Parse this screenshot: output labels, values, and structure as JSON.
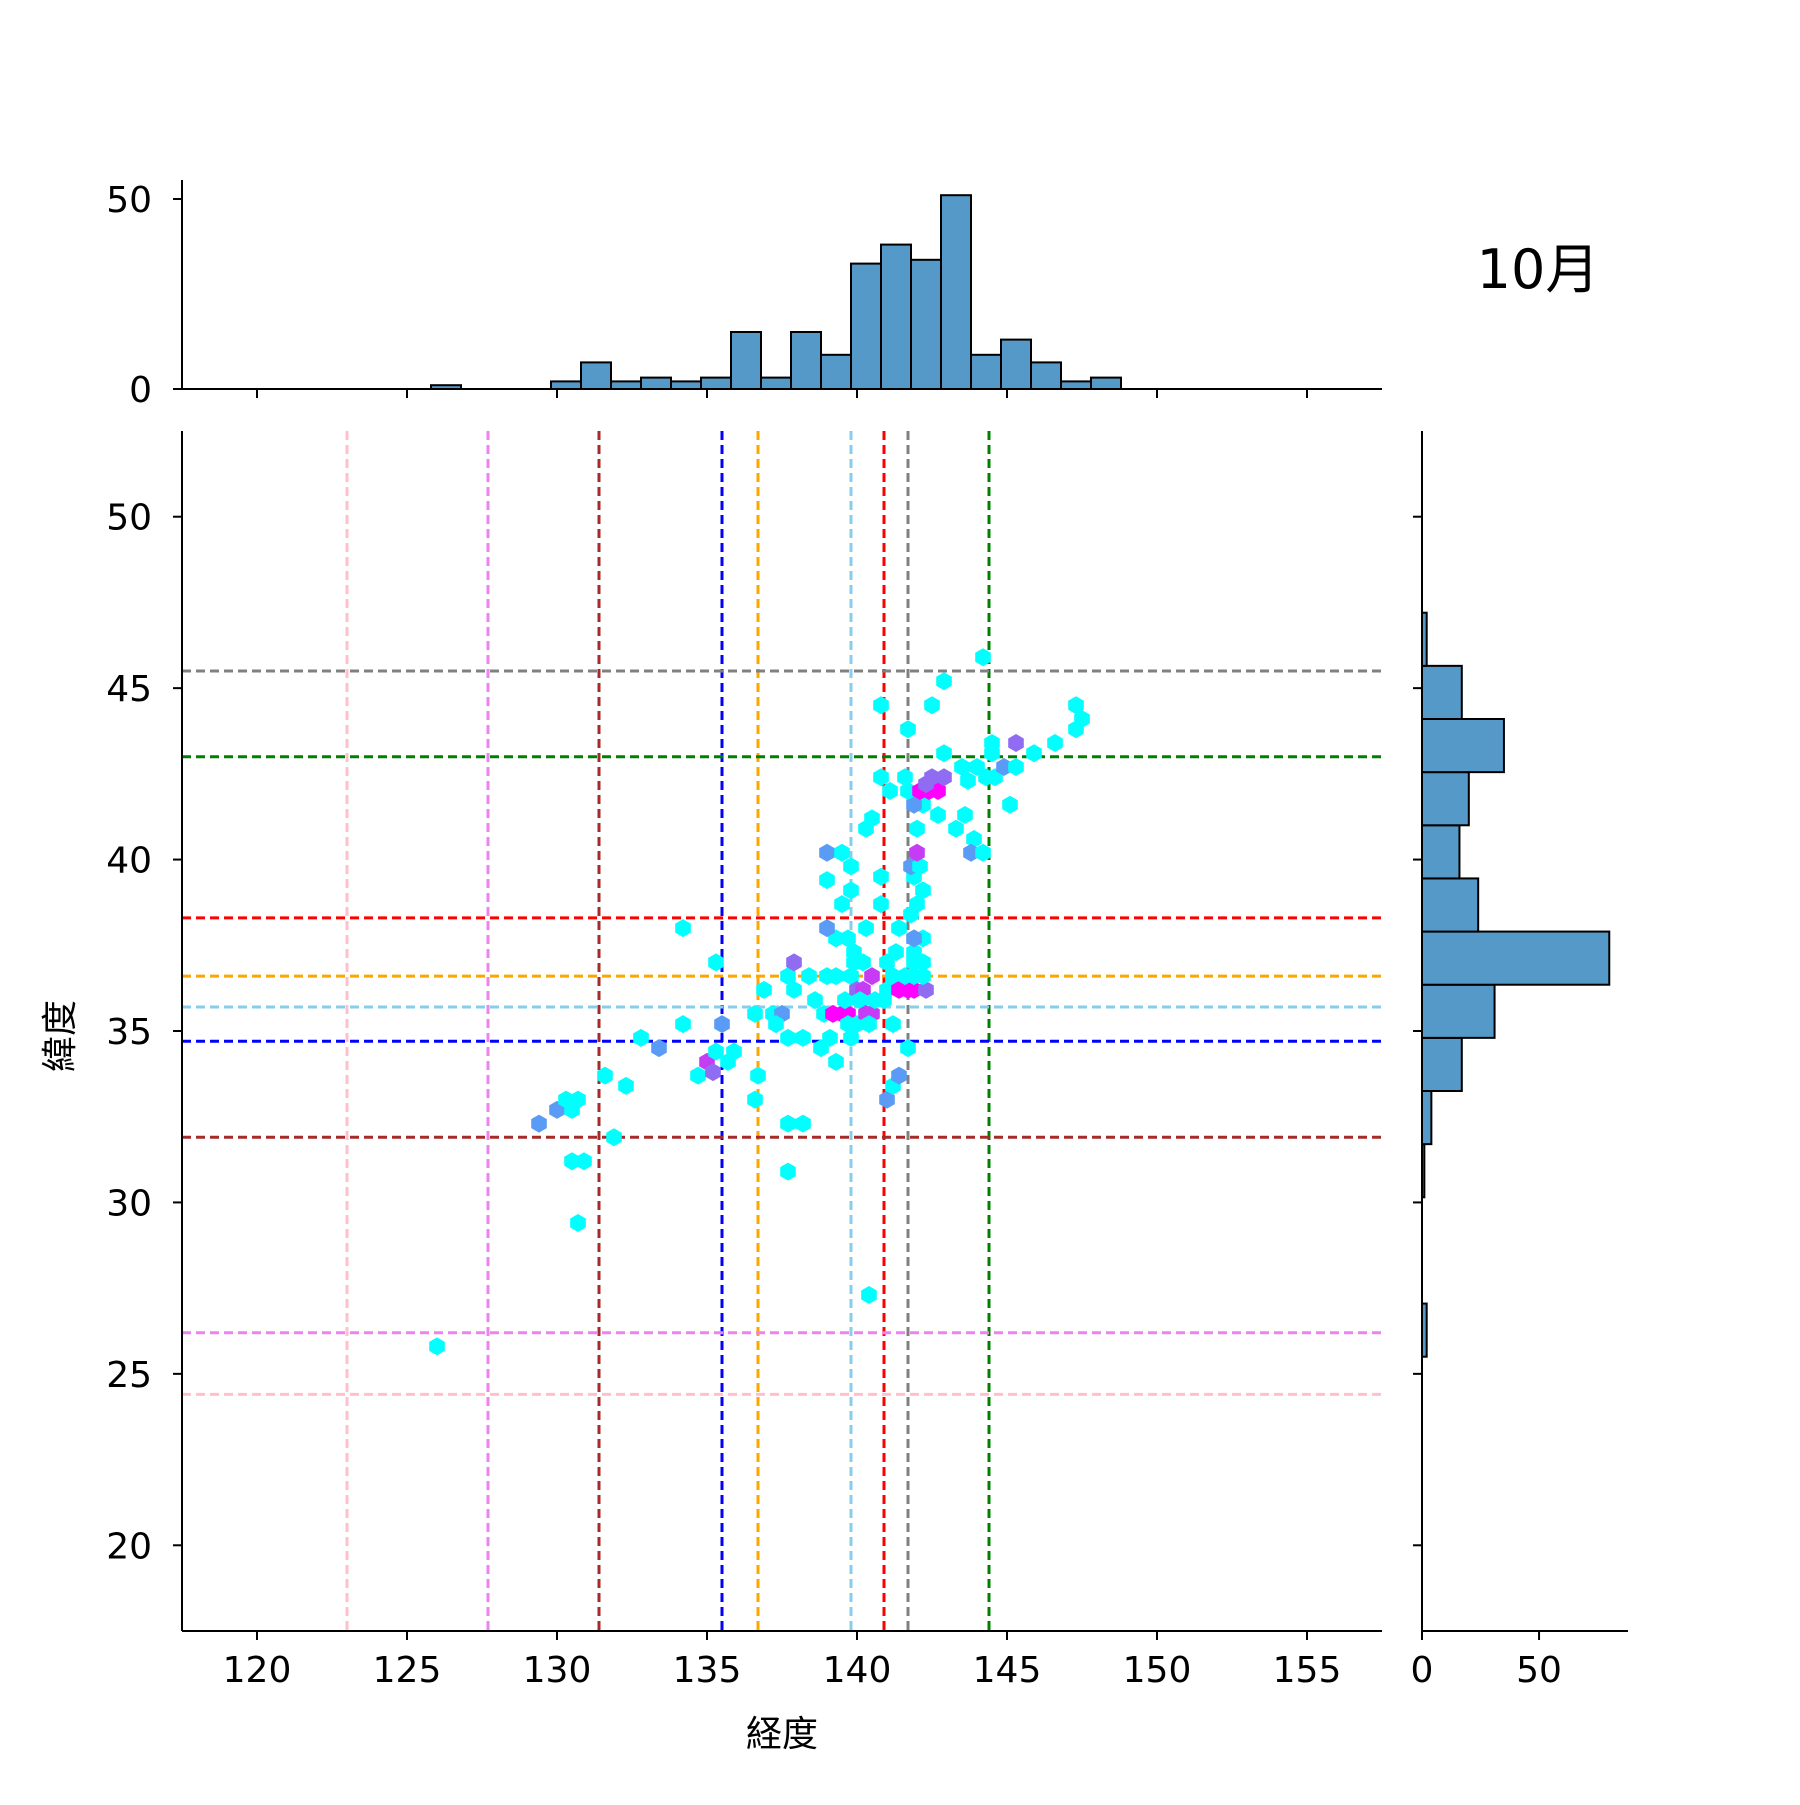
{
  "title": "10月",
  "chart_data": {
    "type": "hexbin-jointplot",
    "xlabel": "経度",
    "ylabel": "緯度",
    "xlim": [
      117.5,
      157.5
    ],
    "ylim": [
      17.5,
      52.5
    ],
    "x_ticks": [
      120,
      125,
      130,
      135,
      140,
      145,
      150,
      155
    ],
    "y_ticks": [
      20,
      25,
      30,
      35,
      40,
      45,
      50
    ],
    "marginal_x": {
      "y_ticks": [
        0,
        50
      ],
      "ylim": [
        0,
        55
      ],
      "bin_start": 125.8,
      "bin_width": 1.0,
      "counts": [
        1,
        0,
        0,
        0,
        2,
        7,
        2,
        3,
        2,
        3,
        15,
        3,
        15,
        9,
        33,
        38,
        34,
        51,
        9,
        13,
        7,
        2,
        3
      ]
    },
    "marginal_y": {
      "x_ticks": [
        0,
        50
      ],
      "xlim": [
        0,
        88
      ],
      "bin_start": 25.5,
      "bin_width": 1.55,
      "counts": [
        2,
        0,
        0,
        1,
        4,
        17,
        31,
        80,
        24,
        16,
        20,
        35,
        17,
        2
      ]
    },
    "vlines": [
      {
        "x": 123.0,
        "color": "#ffc0cb"
      },
      {
        "x": 127.7,
        "color": "#ee82ee"
      },
      {
        "x": 131.4,
        "color": "#a52a2a"
      },
      {
        "x": 135.5,
        "color": "#0000ff"
      },
      {
        "x": 136.7,
        "color": "#ffa500"
      },
      {
        "x": 139.8,
        "color": "#87ceeb"
      },
      {
        "x": 140.9,
        "color": "#ff0000"
      },
      {
        "x": 141.7,
        "color": "#808080"
      },
      {
        "x": 144.4,
        "color": "#008000"
      }
    ],
    "hlines": [
      {
        "y": 24.4,
        "color": "#ffc0cb"
      },
      {
        "y": 26.2,
        "color": "#ee82ee"
      },
      {
        "y": 31.9,
        "color": "#a52a2a"
      },
      {
        "y": 34.7,
        "color": "#0000ff"
      },
      {
        "y": 35.7,
        "color": "#87ceeb"
      },
      {
        "y": 36.6,
        "color": "#ffa500"
      },
      {
        "y": 38.3,
        "color": "#ff0000"
      },
      {
        "y": 43.0,
        "color": "#008000"
      },
      {
        "y": 45.5,
        "color": "#808080"
      }
    ],
    "hexbins": [
      {
        "x": 126.0,
        "y": 25.8,
        "c": 1
      },
      {
        "x": 130.7,
        "y": 29.4,
        "c": 1
      },
      {
        "x": 130.5,
        "y": 31.2,
        "c": 1
      },
      {
        "x": 130.9,
        "y": 31.2,
        "c": 1
      },
      {
        "x": 131.9,
        "y": 31.9,
        "c": 1
      },
      {
        "x": 129.4,
        "y": 32.3,
        "c": 2
      },
      {
        "x": 130.0,
        "y": 32.7,
        "c": 2
      },
      {
        "x": 130.5,
        "y": 32.7,
        "c": 1
      },
      {
        "x": 130.3,
        "y": 33.0,
        "c": 1
      },
      {
        "x": 130.7,
        "y": 33.0,
        "c": 1
      },
      {
        "x": 131.6,
        "y": 33.7,
        "c": 1
      },
      {
        "x": 132.3,
        "y": 33.4,
        "c": 1
      },
      {
        "x": 132.8,
        "y": 34.8,
        "c": 1
      },
      {
        "x": 133.4,
        "y": 34.5,
        "c": 2
      },
      {
        "x": 134.2,
        "y": 35.2,
        "c": 1
      },
      {
        "x": 134.7,
        "y": 33.7,
        "c": 1
      },
      {
        "x": 135.0,
        "y": 34.1,
        "c": 4
      },
      {
        "x": 135.2,
        "y": 33.8,
        "c": 3
      },
      {
        "x": 135.3,
        "y": 34.4,
        "c": 1
      },
      {
        "x": 135.5,
        "y": 35.2,
        "c": 2
      },
      {
        "x": 135.7,
        "y": 34.1,
        "c": 1
      },
      {
        "x": 135.9,
        "y": 34.4,
        "c": 1
      },
      {
        "x": 135.3,
        "y": 37.0,
        "c": 1
      },
      {
        "x": 134.2,
        "y": 38.0,
        "c": 1
      },
      {
        "x": 136.6,
        "y": 33.0,
        "c": 1
      },
      {
        "x": 136.7,
        "y": 33.7,
        "c": 1
      },
      {
        "x": 136.6,
        "y": 35.5,
        "c": 1
      },
      {
        "x": 136.9,
        "y": 36.2,
        "c": 1
      },
      {
        "x": 137.2,
        "y": 35.5,
        "c": 1
      },
      {
        "x": 137.5,
        "y": 35.5,
        "c": 2
      },
      {
        "x": 137.3,
        "y": 35.2,
        "c": 1
      },
      {
        "x": 137.7,
        "y": 34.8,
        "c": 1
      },
      {
        "x": 138.2,
        "y": 34.8,
        "c": 1
      },
      {
        "x": 137.7,
        "y": 36.6,
        "c": 1
      },
      {
        "x": 137.9,
        "y": 36.2,
        "c": 1
      },
      {
        "x": 137.9,
        "y": 37.0,
        "c": 3
      },
      {
        "x": 138.4,
        "y": 36.6,
        "c": 1
      },
      {
        "x": 138.6,
        "y": 35.9,
        "c": 1
      },
      {
        "x": 138.9,
        "y": 35.5,
        "c": 1
      },
      {
        "x": 138.8,
        "y": 34.5,
        "c": 1
      },
      {
        "x": 139.1,
        "y": 34.8,
        "c": 1
      },
      {
        "x": 139.3,
        "y": 34.1,
        "c": 1
      },
      {
        "x": 137.7,
        "y": 32.3,
        "c": 1
      },
      {
        "x": 138.2,
        "y": 32.3,
        "c": 1
      },
      {
        "x": 137.7,
        "y": 30.9,
        "c": 1
      },
      {
        "x": 139.2,
        "y": 35.5,
        "c": 5
      },
      {
        "x": 139.5,
        "y": 35.5,
        "c": 5
      },
      {
        "x": 139.7,
        "y": 35.5,
        "c": 5
      },
      {
        "x": 139.7,
        "y": 35.2,
        "c": 1
      },
      {
        "x": 140.0,
        "y": 35.2,
        "c": 1
      },
      {
        "x": 139.8,
        "y": 34.8,
        "c": 1
      },
      {
        "x": 139.6,
        "y": 35.9,
        "c": 1
      },
      {
        "x": 139.0,
        "y": 36.6,
        "c": 1
      },
      {
        "x": 139.3,
        "y": 36.6,
        "c": 1
      },
      {
        "x": 139.8,
        "y": 36.6,
        "c": 1
      },
      {
        "x": 140.0,
        "y": 36.2,
        "c": 3
      },
      {
        "x": 140.2,
        "y": 36.2,
        "c": 4
      },
      {
        "x": 140.1,
        "y": 35.9,
        "c": 1
      },
      {
        "x": 140.3,
        "y": 35.5,
        "c": 4
      },
      {
        "x": 140.5,
        "y": 35.5,
        "c": 4
      },
      {
        "x": 140.4,
        "y": 35.2,
        "c": 1
      },
      {
        "x": 140.6,
        "y": 35.9,
        "c": 1
      },
      {
        "x": 140.5,
        "y": 36.6,
        "c": 4
      },
      {
        "x": 139.9,
        "y": 37.0,
        "c": 1
      },
      {
        "x": 140.2,
        "y": 37.0,
        "c": 1
      },
      {
        "x": 139.7,
        "y": 37.7,
        "c": 1
      },
      {
        "x": 139.9,
        "y": 37.3,
        "c": 1
      },
      {
        "x": 139.3,
        "y": 37.7,
        "c": 1
      },
      {
        "x": 139.0,
        "y": 38.0,
        "c": 2
      },
      {
        "x": 139.0,
        "y": 39.4,
        "c": 1
      },
      {
        "x": 139.5,
        "y": 38.7,
        "c": 1
      },
      {
        "x": 139.8,
        "y": 39.1,
        "c": 1
      },
      {
        "x": 140.3,
        "y": 38.0,
        "c": 1
      },
      {
        "x": 140.8,
        "y": 38.7,
        "c": 1
      },
      {
        "x": 140.8,
        "y": 39.5,
        "c": 1
      },
      {
        "x": 139.8,
        "y": 39.8,
        "c": 1
      },
      {
        "x": 139.0,
        "y": 40.2,
        "c": 2
      },
      {
        "x": 139.5,
        "y": 40.2,
        "c": 1
      },
      {
        "x": 140.3,
        "y": 40.9,
        "c": 1
      },
      {
        "x": 140.5,
        "y": 41.2,
        "c": 1
      },
      {
        "x": 140.8,
        "y": 42.4,
        "c": 1
      },
      {
        "x": 141.1,
        "y": 42.0,
        "c": 1
      },
      {
        "x": 140.8,
        "y": 44.5,
        "c": 1
      },
      {
        "x": 141.7,
        "y": 43.8,
        "c": 1
      },
      {
        "x": 141.4,
        "y": 38.0,
        "c": 1
      },
      {
        "x": 141.3,
        "y": 37.3,
        "c": 1
      },
      {
        "x": 141.0,
        "y": 37.0,
        "c": 1
      },
      {
        "x": 141.2,
        "y": 36.6,
        "c": 1
      },
      {
        "x": 141.0,
        "y": 36.2,
        "c": 1
      },
      {
        "x": 140.9,
        "y": 35.9,
        "c": 1
      },
      {
        "x": 141.2,
        "y": 35.2,
        "c": 1
      },
      {
        "x": 141.7,
        "y": 34.5,
        "c": 1
      },
      {
        "x": 141.0,
        "y": 33.0,
        "c": 2
      },
      {
        "x": 141.2,
        "y": 33.4,
        "c": 1
      },
      {
        "x": 141.4,
        "y": 33.7,
        "c": 2
      },
      {
        "x": 141.4,
        "y": 36.2,
        "c": 5
      },
      {
        "x": 141.7,
        "y": 36.2,
        "c": 5
      },
      {
        "x": 141.9,
        "y": 36.2,
        "c": 5
      },
      {
        "x": 142.3,
        "y": 36.2,
        "c": 3
      },
      {
        "x": 141.6,
        "y": 36.6,
        "c": 1
      },
      {
        "x": 141.9,
        "y": 36.6,
        "c": 1
      },
      {
        "x": 142.2,
        "y": 36.6,
        "c": 1
      },
      {
        "x": 141.9,
        "y": 37.0,
        "c": 1
      },
      {
        "x": 142.2,
        "y": 37.0,
        "c": 1
      },
      {
        "x": 141.9,
        "y": 37.3,
        "c": 1
      },
      {
        "x": 142.2,
        "y": 37.7,
        "c": 1
      },
      {
        "x": 141.9,
        "y": 37.7,
        "c": 2
      },
      {
        "x": 141.8,
        "y": 38.4,
        "c": 1
      },
      {
        "x": 142.0,
        "y": 38.7,
        "c": 1
      },
      {
        "x": 142.2,
        "y": 39.1,
        "c": 1
      },
      {
        "x": 141.9,
        "y": 39.5,
        "c": 1
      },
      {
        "x": 141.8,
        "y": 39.8,
        "c": 2
      },
      {
        "x": 142.1,
        "y": 39.8,
        "c": 1
      },
      {
        "x": 142.0,
        "y": 40.2,
        "c": 4
      },
      {
        "x": 142.0,
        "y": 40.9,
        "c": 1
      },
      {
        "x": 142.2,
        "y": 41.6,
        "c": 1
      },
      {
        "x": 141.9,
        "y": 41.6,
        "c": 2
      },
      {
        "x": 141.7,
        "y": 42.0,
        "c": 1
      },
      {
        "x": 141.6,
        "y": 42.4,
        "c": 1
      },
      {
        "x": 142.1,
        "y": 42.0,
        "c": 5
      },
      {
        "x": 142.4,
        "y": 42.0,
        "c": 5
      },
      {
        "x": 142.7,
        "y": 42.0,
        "c": 5
      },
      {
        "x": 142.5,
        "y": 42.4,
        "c": 3
      },
      {
        "x": 142.9,
        "y": 42.4,
        "c": 3
      },
      {
        "x": 142.3,
        "y": 42.2,
        "c": 3
      },
      {
        "x": 142.7,
        "y": 41.3,
        "c": 1
      },
      {
        "x": 142.5,
        "y": 44.5,
        "c": 1
      },
      {
        "x": 142.9,
        "y": 45.2,
        "c": 1
      },
      {
        "x": 142.9,
        "y": 43.1,
        "c": 1
      },
      {
        "x": 143.5,
        "y": 42.7,
        "c": 1
      },
      {
        "x": 143.3,
        "y": 40.9,
        "c": 1
      },
      {
        "x": 143.6,
        "y": 41.3,
        "c": 1
      },
      {
        "x": 143.9,
        "y": 40.6,
        "c": 1
      },
      {
        "x": 143.8,
        "y": 40.2,
        "c": 2
      },
      {
        "x": 144.2,
        "y": 40.2,
        "c": 1
      },
      {
        "x": 143.7,
        "y": 42.3,
        "c": 1
      },
      {
        "x": 144.0,
        "y": 42.7,
        "c": 1
      },
      {
        "x": 144.3,
        "y": 42.4,
        "c": 1
      },
      {
        "x": 144.6,
        "y": 42.4,
        "c": 1
      },
      {
        "x": 144.5,
        "y": 43.1,
        "c": 1
      },
      {
        "x": 144.5,
        "y": 43.4,
        "c": 1
      },
      {
        "x": 144.9,
        "y": 42.7,
        "c": 2
      },
      {
        "x": 145.3,
        "y": 42.7,
        "c": 1
      },
      {
        "x": 145.3,
        "y": 43.4,
        "c": 3
      },
      {
        "x": 145.1,
        "y": 41.6,
        "c": 1
      },
      {
        "x": 144.2,
        "y": 45.9,
        "c": 1
      },
      {
        "x": 145.9,
        "y": 43.1,
        "c": 1
      },
      {
        "x": 146.6,
        "y": 43.4,
        "c": 1
      },
      {
        "x": 147.3,
        "y": 43.8,
        "c": 1
      },
      {
        "x": 147.5,
        "y": 44.1,
        "c": 1
      },
      {
        "x": 147.3,
        "y": 44.5,
        "c": 1
      },
      {
        "x": 140.4,
        "y": 27.3,
        "c": 1
      }
    ]
  }
}
